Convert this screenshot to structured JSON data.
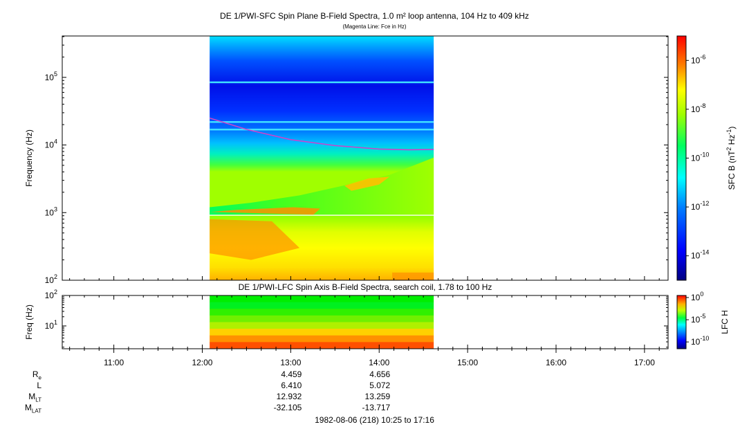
{
  "title": "DE 1/PWI-SFC  Spin Plane B-Field Spectra, 1.0 m² loop antenna, 104 Hz to 409 kHz",
  "subtitle": "(Magenta Line: Fce in Hz)",
  "lower_title": "DE 1/PWI-LFC  Spin Axis B-Field Spectra, search coil, 1.78 to 100 Hz",
  "footer": "1982-08-06 (218) 10:25 to 17:16",
  "colors": {
    "fce_line": "#cc44cc",
    "frame": "#000000"
  },
  "chart_data": [
    {
      "type": "heatmap",
      "name": "upper-spectrogram",
      "title": "DE 1/PWI-SFC  Spin Plane B-Field Spectra, 1.0 m² loop antenna, 104 Hz to 409 kHz",
      "ylabel": "Frequency (Hz)",
      "yscale": "log",
      "ylim": [
        100,
        409000
      ],
      "y_ticks": [
        {
          "value": 100,
          "base": "10",
          "exp": "2"
        },
        {
          "value": 1000,
          "base": "10",
          "exp": "3"
        },
        {
          "value": 10000,
          "base": "10",
          "exp": "4"
        },
        {
          "value": 100000,
          "base": "10",
          "exp": "5"
        }
      ],
      "xlim": [
        "10:25",
        "17:16"
      ],
      "data_coverage": [
        "12:05",
        "14:37"
      ],
      "colorbar": {
        "label_main": "SFC B (nT",
        "label_sup1": "2",
        "label_mid": " Hz",
        "label_sup2": "-1",
        "label_end": ")",
        "scale": "log",
        "range": [
          "1e-15",
          "1e-5"
        ],
        "ticks": [
          {
            "base": "10",
            "exp": "-6",
            "value": -6
          },
          {
            "base": "10",
            "exp": "-8",
            "value": -8
          },
          {
            "base": "10",
            "exp": "-10",
            "value": -10
          },
          {
            "base": "10",
            "exp": "-12",
            "value": -12
          },
          {
            "base": "10",
            "exp": "-14",
            "value": -14
          }
        ]
      },
      "fce_line": {
        "name": "Fce",
        "times": [
          "12:05",
          "12:30",
          "13:00",
          "13:30",
          "14:00",
          "14:20",
          "14:37"
        ],
        "freq_hz": [
          25000,
          17000,
          12000,
          9800,
          8700,
          8500,
          8600
        ]
      }
    },
    {
      "type": "heatmap",
      "name": "lower-spectrogram",
      "title": "DE 1/PWI-LFC  Spin Axis B-Field Spectra, search coil, 1.78 to 100 Hz",
      "ylabel": "Freq (Hz)",
      "yscale": "log",
      "ylim": [
        1.78,
        100
      ],
      "y_ticks": [
        {
          "value": 10,
          "base": "10",
          "exp": "1"
        },
        {
          "value": 100,
          "base": "10",
          "exp": "2"
        }
      ],
      "xlim": [
        "10:25",
        "17:16"
      ],
      "data_coverage": [
        "12:05",
        "14:37"
      ],
      "colorbar": {
        "label": "LFC H",
        "scale": "log",
        "ticks": [
          {
            "base": "10",
            "exp": "0",
            "value": 0
          },
          {
            "base": "10",
            "exp": "-5",
            "value": -5
          },
          {
            "base": "10",
            "exp": "-10",
            "value": -10
          }
        ]
      }
    }
  ],
  "x_ticks": [
    "11:00",
    "12:00",
    "13:00",
    "14:00",
    "15:00",
    "16:00",
    "17:00"
  ],
  "ephemeris": {
    "rows": [
      {
        "label": "R",
        "sub": "e",
        "values": [
          "4.459",
          "4.656"
        ]
      },
      {
        "label": "L",
        "sub": "",
        "values": [
          "6.410",
          "5.072"
        ]
      },
      {
        "label": "M",
        "sub": "LT",
        "values": [
          "12.932",
          "13.259"
        ]
      },
      {
        "label": "M",
        "sub": "LAT",
        "values": [
          "-32.105",
          "-13.717"
        ]
      }
    ],
    "columns_at": [
      "13:00",
      "14:00"
    ]
  }
}
